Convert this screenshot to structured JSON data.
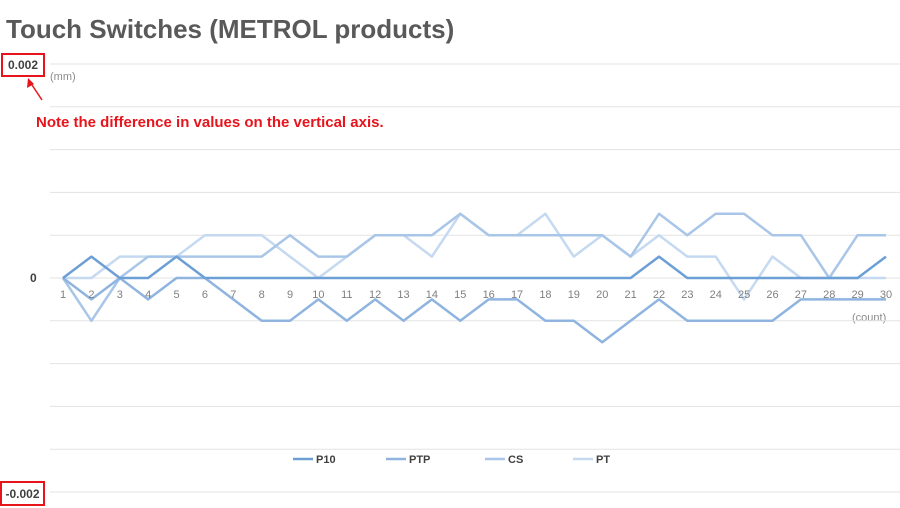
{
  "chart_data": {
    "type": "line",
    "title": "Touch Switches (METROL products)",
    "ylabel": "(mm)",
    "xlabel": "(count)",
    "ylim": [
      -0.002,
      0.002
    ],
    "y_top_label": "0.002",
    "y_zero_label": "0",
    "y_bottom_label": "-0.002",
    "note": "Note the difference in values on the vertical axis.",
    "grid": true,
    "legend_position": "bottom",
    "x": [
      1,
      2,
      3,
      4,
      5,
      6,
      7,
      8,
      9,
      10,
      11,
      12,
      13,
      14,
      15,
      16,
      17,
      18,
      19,
      20,
      21,
      22,
      23,
      24,
      25,
      26,
      27,
      28,
      29,
      30
    ],
    "series": [
      {
        "name": "P10",
        "color": "#6c9fd6",
        "values": [
          0,
          0.0002,
          0,
          0,
          0.0002,
          0,
          0,
          0,
          0,
          0,
          0,
          0,
          0,
          0,
          0,
          0,
          0,
          0,
          0,
          0,
          0,
          0.0002,
          0,
          0,
          0,
          0,
          0,
          0,
          0,
          0.0002
        ]
      },
      {
        "name": "PTP",
        "color": "#8fb4e0",
        "values": [
          0,
          -0.0002,
          0,
          -0.0002,
          0,
          0,
          -0.0002,
          -0.0004,
          -0.0004,
          -0.0002,
          -0.0004,
          -0.0002,
          -0.0004,
          -0.0002,
          -0.0004,
          -0.0002,
          -0.0002,
          -0.0004,
          -0.0004,
          -0.0006,
          -0.0004,
          -0.0002,
          -0.0004,
          -0.0004,
          -0.0004,
          -0.0004,
          -0.0002,
          -0.0002,
          -0.0002,
          -0.0002
        ]
      },
      {
        "name": "CS",
        "color": "#a9c6e8",
        "values": [
          0,
          -0.0004,
          0,
          0.0002,
          0.0002,
          0.0002,
          0.0002,
          0.0002,
          0.0004,
          0.0002,
          0.0002,
          0.0004,
          0.0004,
          0.0004,
          0.0006,
          0.0004,
          0.0004,
          0.0004,
          0.0004,
          0.0004,
          0.0002,
          0.0006,
          0.0004,
          0.0006,
          0.0006,
          0.0004,
          0.0004,
          0,
          0.0004,
          0.0004
        ]
      },
      {
        "name": "PT",
        "color": "#c5d9f0",
        "values": [
          0,
          0,
          0.0002,
          0.0002,
          0.0002,
          0.0004,
          0.0004,
          0.0004,
          0.0002,
          0,
          0.0002,
          0.0004,
          0.0004,
          0.0002,
          0.0006,
          0.0004,
          0.0004,
          0.0006,
          0.0002,
          0.0004,
          0.0002,
          0.0004,
          0.0002,
          0.0002,
          -0.0002,
          0.0002,
          0,
          0,
          0,
          0
        ]
      }
    ]
  }
}
